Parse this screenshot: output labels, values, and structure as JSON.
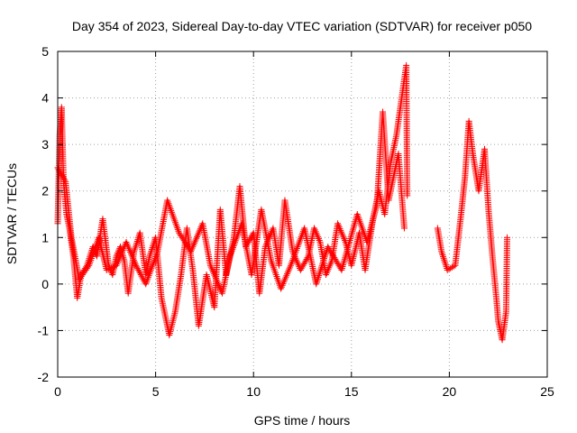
{
  "chart_data": {
    "type": "scatter",
    "title": "Day 354 of 2023, Sidereal Day-to-day VTEC variation (SDTVAR) for receiver p050",
    "xlabel": "GPS time / hours",
    "ylabel": "SDTVAR / TECUs",
    "xlim": [
      0,
      25
    ],
    "ylim": [
      -2,
      5
    ],
    "xticks": [
      0,
      5,
      10,
      15,
      20,
      25
    ],
    "yticks": [
      -2,
      -1,
      0,
      1,
      2,
      3,
      4,
      5
    ],
    "grid": true,
    "marker": "+",
    "color": "#ff0000",
    "curve": [
      [
        0.0,
        1.3
      ],
      [
        0.1,
        3.2
      ],
      [
        0.2,
        3.8
      ],
      [
        0.3,
        2.2
      ],
      [
        0.45,
        1.5
      ],
      [
        0.6,
        1.2
      ],
      [
        0.8,
        0.6
      ],
      [
        1.0,
        -0.3
      ],
      [
        1.2,
        0.2
      ],
      [
        1.5,
        0.4
      ],
      [
        1.8,
        0.8
      ],
      [
        2.0,
        0.6
      ],
      [
        2.3,
        1.4
      ],
      [
        2.6,
        0.4
      ],
      [
        2.8,
        0.2
      ],
      [
        3.0,
        0.6
      ],
      [
        3.2,
        0.8
      ],
      [
        3.4,
        0.5
      ],
      [
        3.6,
        -0.2
      ],
      [
        3.9,
        0.7
      ],
      [
        4.2,
        1.1
      ],
      [
        4.5,
        0.2
      ],
      [
        4.7,
        0.6
      ],
      [
        5.0,
        1.0
      ],
      [
        5.3,
        -0.3
      ],
      [
        5.7,
        -1.1
      ],
      [
        6.0,
        -0.6
      ],
      [
        6.3,
        0.2
      ],
      [
        6.6,
        1.2
      ],
      [
        6.9,
        0.3
      ],
      [
        7.2,
        -0.9
      ],
      [
        7.6,
        0.2
      ],
      [
        8.0,
        -0.5
      ],
      [
        8.3,
        1.6
      ],
      [
        8.6,
        0.2
      ],
      [
        9.0,
        1.0
      ],
      [
        9.3,
        2.1
      ],
      [
        9.6,
        0.8
      ],
      [
        10.0,
        1.1
      ],
      [
        10.3,
        -0.2
      ],
      [
        10.6,
        0.8
      ],
      [
        11.0,
        1.2
      ],
      [
        11.3,
        0.4
      ],
      [
        11.6,
        1.8
      ],
      [
        12.0,
        0.7
      ],
      [
        12.4,
        0.3
      ],
      [
        12.8,
        0.6
      ],
      [
        13.1,
        1.2
      ],
      [
        13.4,
        0.9
      ],
      [
        13.7,
        0.2
      ],
      [
        14.0,
        0.5
      ],
      [
        14.3,
        1.3
      ],
      [
        14.7,
        0.9
      ],
      [
        15.0,
        0.4
      ],
      [
        15.4,
        1.1
      ],
      [
        15.7,
        0.3
      ],
      [
        16.1,
        1.4
      ],
      [
        16.4,
        2.0
      ],
      [
        16.7,
        1.5
      ],
      [
        17.0,
        2.6
      ],
      [
        17.3,
        3.2
      ],
      [
        17.5,
        3.8
      ],
      [
        17.8,
        4.7
      ],
      [
        17.85,
        1.9
      ]
    ],
    "curve2": [
      [
        19.4,
        1.2
      ],
      [
        19.6,
        0.7
      ],
      [
        19.9,
        0.3
      ],
      [
        20.3,
        0.4
      ],
      [
        20.6,
        1.5
      ],
      [
        20.8,
        2.3
      ],
      [
        21.0,
        3.5
      ],
      [
        21.2,
        2.8
      ],
      [
        21.5,
        2.0
      ],
      [
        21.8,
        2.9
      ],
      [
        22.0,
        1.6
      ],
      [
        22.2,
        0.6
      ],
      [
        22.4,
        -0.3
      ],
      [
        22.5,
        -0.8
      ],
      [
        22.7,
        -1.2
      ],
      [
        22.9,
        -0.6
      ],
      [
        22.95,
        1.0
      ]
    ],
    "band": [
      [
        0.0,
        2.5
      ],
      [
        0.4,
        2.2
      ],
      [
        0.7,
        1.0
      ],
      [
        1.1,
        0.1
      ],
      [
        1.6,
        0.4
      ],
      [
        2.1,
        1.0
      ],
      [
        2.5,
        0.3
      ],
      [
        3.0,
        0.4
      ],
      [
        3.5,
        0.9
      ],
      [
        4.0,
        0.4
      ],
      [
        4.5,
        0.0
      ],
      [
        5.1,
        0.7
      ],
      [
        5.6,
        1.8
      ],
      [
        6.2,
        1.1
      ],
      [
        6.8,
        0.7
      ],
      [
        7.4,
        1.3
      ],
      [
        7.8,
        0.4
      ],
      [
        8.4,
        -0.2
      ],
      [
        8.8,
        0.6
      ],
      [
        9.4,
        1.3
      ],
      [
        9.9,
        0.2
      ],
      [
        10.4,
        1.6
      ],
      [
        10.9,
        0.5
      ],
      [
        11.4,
        -0.1
      ],
      [
        11.9,
        0.4
      ],
      [
        12.6,
        1.2
      ],
      [
        13.2,
        0.0
      ],
      [
        13.8,
        0.8
      ],
      [
        14.5,
        0.3
      ],
      [
        15.3,
        1.5
      ],
      [
        15.8,
        0.9
      ],
      [
        16.3,
        1.7
      ],
      [
        16.6,
        3.7
      ],
      [
        16.9,
        1.8
      ],
      [
        17.4,
        2.8
      ],
      [
        17.7,
        1.2
      ]
    ]
  }
}
